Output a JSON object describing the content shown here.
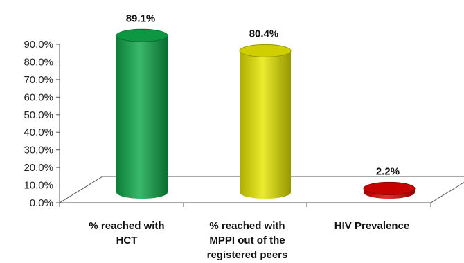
{
  "chart_data": {
    "type": "bar",
    "style": "3d-cylinder",
    "categories": [
      [
        "% reached with",
        "HCT"
      ],
      [
        "% reached with",
        "MPPI out of the",
        "registered peers"
      ],
      [
        "HIV Prevalence"
      ]
    ],
    "values": [
      89.1,
      80.4,
      2.2
    ],
    "value_labels": [
      "89.1%",
      "80.4%",
      "2.2%"
    ],
    "colors": [
      "#0fa84a",
      "#e6e600",
      "#dd0000"
    ],
    "title": "",
    "xlabel": "",
    "ylabel": "",
    "ylim": [
      0,
      90
    ],
    "yticks": [
      "0.0%",
      "10.0%",
      "20.0%",
      "30.0%",
      "40.0%",
      "50.0%",
      "60.0%",
      "70.0%",
      "80.0%",
      "90.0%"
    ],
    "grid": false,
    "legend": "none"
  }
}
